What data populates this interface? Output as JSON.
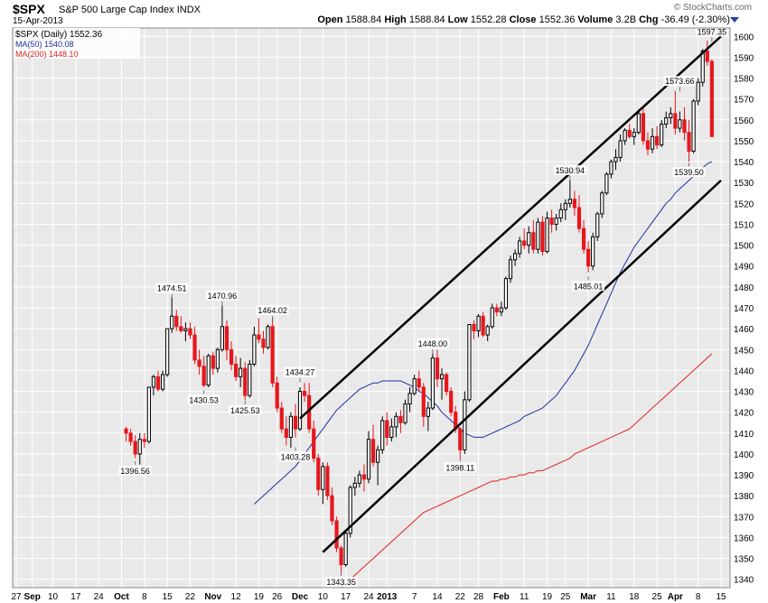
{
  "header": {
    "symbol": "$SPX",
    "name": "S&P 500 Large Cap Index",
    "exchange": "INDX",
    "date": "15-Apr-2013",
    "brand": "© StockCharts.com",
    "ohlc": {
      "open_label": "Open",
      "open": "1588.84",
      "high_label": "High",
      "high": "1588.84",
      "low_label": "Low",
      "low": "1552.28",
      "close_label": "Close",
      "close": "1552.36",
      "volume_label": "Volume",
      "volume": "3.2B",
      "chg_label": "Chg",
      "chg": "-36.49 (-2.30%)"
    }
  },
  "legend": {
    "main": "$SPX (Daily) 1552.36",
    "ma50": "MA(50) 1540.08",
    "ma200": "MA(200) 1448.10"
  },
  "colors": {
    "background": "#e9e9e9",
    "up": "#000000",
    "down": "#e8161c",
    "ma50": "#1f2fa0",
    "ma200": "#e0241e",
    "channel": "#000000",
    "grid": "#ffffff"
  },
  "chart_data": {
    "type": "candlestick",
    "ylim": [
      1336,
      1604
    ],
    "y_ticks": [
      1340,
      1350,
      1360,
      1370,
      1380,
      1390,
      1400,
      1410,
      1420,
      1430,
      1440,
      1450,
      1460,
      1470,
      1480,
      1490,
      1500,
      1510,
      1520,
      1530,
      1540,
      1550,
      1560,
      1570,
      1580,
      1590,
      1600
    ],
    "x_labels": [
      {
        "label": "27",
        "bold": false
      },
      {
        "label": "Sep",
        "bold": true
      },
      {
        "label": "10",
        "bold": false
      },
      {
        "label": "17",
        "bold": false
      },
      {
        "label": "24",
        "bold": false
      },
      {
        "label": "Oct",
        "bold": true
      },
      {
        "label": "8",
        "bold": false
      },
      {
        "label": "15",
        "bold": false
      },
      {
        "label": "22",
        "bold": false
      },
      {
        "label": "Nov",
        "bold": true
      },
      {
        "label": "12",
        "bold": false
      },
      {
        "label": "19",
        "bold": false
      },
      {
        "label": "26",
        "bold": false
      },
      {
        "label": "Dec",
        "bold": true
      },
      {
        "label": "10",
        "bold": false
      },
      {
        "label": "17",
        "bold": false
      },
      {
        "label": "24",
        "bold": false
      },
      {
        "label": "2013",
        "bold": true
      },
      {
        "label": "7",
        "bold": false
      },
      {
        "label": "14",
        "bold": false
      },
      {
        "label": "22",
        "bold": false
      },
      {
        "label": "28",
        "bold": false
      },
      {
        "label": "Feb",
        "bold": true
      },
      {
        "label": "11",
        "bold": false
      },
      {
        "label": "19",
        "bold": false
      },
      {
        "label": "25",
        "bold": false
      },
      {
        "label": "Mar",
        "bold": true
      },
      {
        "label": "11",
        "bold": false
      },
      {
        "label": "18",
        "bold": false
      },
      {
        "label": "25",
        "bold": false
      },
      {
        "label": "Apr",
        "bold": true
      },
      {
        "label": "8",
        "bold": false
      },
      {
        "label": "15",
        "bold": false
      }
    ],
    "x_label_days": [
      0,
      3.5,
      8,
      13,
      18,
      23,
      28,
      33,
      38,
      43,
      48,
      53,
      57,
      62,
      67,
      72,
      77,
      81,
      87,
      92,
      97,
      101,
      106,
      111,
      116,
      120,
      125,
      130,
      135,
      140,
      144,
      149,
      154
    ],
    "ohlc": [
      [
        1412,
        1413,
        1406,
        1410
      ],
      [
        1410,
        1412,
        1404,
        1406
      ],
      [
        1406,
        1409,
        1398,
        1400
      ],
      [
        1400,
        1410,
        1395,
        1407
      ],
      [
        1407,
        1410,
        1403,
        1406
      ],
      [
        1406,
        1432,
        1405,
        1432
      ],
      [
        1432,
        1438,
        1428,
        1437
      ],
      [
        1437,
        1440,
        1430,
        1431
      ],
      [
        1431,
        1440,
        1430,
        1438
      ],
      [
        1438,
        1460,
        1437,
        1460
      ],
      [
        1460,
        1475,
        1458,
        1466
      ],
      [
        1466,
        1469,
        1459,
        1461
      ],
      [
        1461,
        1466,
        1458,
        1459
      ],
      [
        1459,
        1463,
        1454,
        1460
      ],
      [
        1460,
        1463,
        1455,
        1457
      ],
      [
        1457,
        1461,
        1443,
        1445
      ],
      [
        1445,
        1450,
        1438,
        1442
      ],
      [
        1442,
        1447,
        1432,
        1433
      ],
      [
        1433,
        1448,
        1432,
        1447
      ],
      [
        1447,
        1449,
        1438,
        1441
      ],
      [
        1441,
        1451,
        1439,
        1450
      ],
      [
        1450,
        1471,
        1449,
        1461
      ],
      [
        1461,
        1464,
        1445,
        1450
      ],
      [
        1450,
        1454,
        1440,
        1443
      ],
      [
        1443,
        1447,
        1435,
        1437
      ],
      [
        1437,
        1446,
        1432,
        1441
      ],
      [
        1441,
        1444,
        1426,
        1428
      ],
      [
        1428,
        1445,
        1427,
        1443
      ],
      [
        1443,
        1461,
        1442,
        1457
      ],
      [
        1457,
        1465,
        1453,
        1455
      ],
      [
        1455,
        1459,
        1448,
        1451
      ],
      [
        1451,
        1462,
        1450,
        1461
      ],
      [
        1461,
        1465,
        1432,
        1434
      ],
      [
        1434,
        1437,
        1420,
        1422
      ],
      [
        1422,
        1425,
        1410,
        1412
      ],
      [
        1412,
        1418,
        1404,
        1408
      ],
      [
        1408,
        1420,
        1403,
        1418
      ],
      [
        1418,
        1424,
        1408,
        1412
      ],
      [
        1412,
        1432,
        1411,
        1430
      ],
      [
        1430,
        1434,
        1425,
        1428
      ],
      [
        1428,
        1434,
        1410,
        1412
      ],
      [
        1412,
        1416,
        1396,
        1398
      ],
      [
        1398,
        1400,
        1380,
        1383
      ],
      [
        1383,
        1396,
        1376,
        1394
      ],
      [
        1394,
        1396,
        1378,
        1380
      ],
      [
        1380,
        1384,
        1366,
        1368
      ],
      [
        1368,
        1370,
        1353,
        1355
      ],
      [
        1355,
        1356,
        1343,
        1347
      ],
      [
        1347,
        1363,
        1346,
        1362
      ],
      [
        1362,
        1385,
        1360,
        1384
      ],
      [
        1384,
        1389,
        1380,
        1386
      ],
      [
        1386,
        1392,
        1384,
        1390
      ],
      [
        1390,
        1395,
        1382,
        1388
      ],
      [
        1388,
        1411,
        1386,
        1407
      ],
      [
        1407,
        1414,
        1394,
        1396
      ],
      [
        1396,
        1404,
        1385,
        1402
      ],
      [
        1402,
        1418,
        1400,
        1416
      ],
      [
        1416,
        1420,
        1404,
        1408
      ],
      [
        1408,
        1417,
        1406,
        1413
      ],
      [
        1413,
        1420,
        1408,
        1418
      ],
      [
        1418,
        1421,
        1410,
        1415
      ],
      [
        1415,
        1426,
        1414,
        1424
      ],
      [
        1424,
        1432,
        1420,
        1429
      ],
      [
        1429,
        1438,
        1428,
        1436
      ],
      [
        1436,
        1440,
        1430,
        1432
      ],
      [
        1432,
        1434,
        1413,
        1418
      ],
      [
        1418,
        1425,
        1411,
        1422
      ],
      [
        1422,
        1448,
        1421,
        1446
      ],
      [
        1446,
        1450,
        1432,
        1436
      ],
      [
        1436,
        1441,
        1426,
        1438
      ],
      [
        1438,
        1439,
        1428,
        1430
      ],
      [
        1430,
        1432,
        1418,
        1420
      ],
      [
        1420,
        1423,
        1410,
        1412
      ],
      [
        1412,
        1413,
        1398,
        1402
      ],
      [
        1402,
        1430,
        1400,
        1426
      ],
      [
        1426,
        1462,
        1425,
        1462
      ],
      [
        1462,
        1464,
        1455,
        1459
      ],
      [
        1459,
        1467,
        1456,
        1466
      ],
      [
        1466,
        1468,
        1456,
        1457
      ],
      [
        1457,
        1462,
        1454,
        1461
      ],
      [
        1461,
        1472,
        1460,
        1470
      ],
      [
        1470,
        1472,
        1466,
        1468
      ],
      [
        1468,
        1473,
        1466,
        1470
      ],
      [
        1470,
        1485,
        1469,
        1484
      ],
      [
        1484,
        1495,
        1482,
        1493
      ],
      [
        1493,
        1498,
        1490,
        1496
      ],
      [
        1496,
        1504,
        1494,
        1502
      ],
      [
        1502,
        1508,
        1498,
        1500
      ],
      [
        1500,
        1509,
        1496,
        1506
      ],
      [
        1506,
        1512,
        1496,
        1498
      ],
      [
        1498,
        1513,
        1496,
        1511
      ],
      [
        1511,
        1514,
        1495,
        1497
      ],
      [
        1497,
        1516,
        1496,
        1513
      ],
      [
        1513,
        1517,
        1506,
        1510
      ],
      [
        1510,
        1515,
        1507,
        1513
      ],
      [
        1513,
        1520,
        1511,
        1517
      ],
      [
        1517,
        1522,
        1512,
        1520
      ],
      [
        1520,
        1531,
        1518,
        1522
      ],
      [
        1522,
        1526,
        1514,
        1518
      ],
      [
        1518,
        1524,
        1506,
        1508
      ],
      [
        1508,
        1512,
        1496,
        1498
      ],
      [
        1498,
        1502,
        1487,
        1490
      ],
      [
        1490,
        1506,
        1488,
        1504
      ],
      [
        1504,
        1516,
        1502,
        1515
      ],
      [
        1515,
        1526,
        1513,
        1525
      ],
      [
        1525,
        1535,
        1524,
        1534
      ],
      [
        1534,
        1541,
        1532,
        1540
      ],
      [
        1540,
        1546,
        1536,
        1542
      ],
      [
        1542,
        1553,
        1540,
        1550
      ],
      [
        1550,
        1556,
        1548,
        1555
      ],
      [
        1555,
        1558,
        1551,
        1552
      ],
      [
        1552,
        1556,
        1548,
        1554
      ],
      [
        1554,
        1565,
        1553,
        1563
      ],
      [
        1563,
        1566,
        1548,
        1550
      ],
      [
        1550,
        1554,
        1543,
        1546
      ],
      [
        1546,
        1556,
        1544,
        1552
      ],
      [
        1552,
        1557,
        1546,
        1548
      ],
      [
        1548,
        1560,
        1547,
        1558
      ],
      [
        1558,
        1564,
        1556,
        1561
      ],
      [
        1561,
        1566,
        1558,
        1563
      ],
      [
        1563,
        1574,
        1553,
        1556
      ],
      [
        1556,
        1564,
        1554,
        1560
      ],
      [
        1560,
        1566,
        1550,
        1554
      ],
      [
        1554,
        1560,
        1540,
        1545
      ],
      [
        1545,
        1570,
        1544,
        1569
      ],
      [
        1569,
        1580,
        1567,
        1578
      ],
      [
        1578,
        1594,
        1576,
        1593
      ],
      [
        1593,
        1598,
        1586,
        1588
      ],
      [
        1588,
        1589,
        1552,
        1552
      ]
    ],
    "ma50": [
      1376,
      1378,
      1380,
      1382,
      1384,
      1386,
      1388,
      1390,
      1392,
      1394,
      1397,
      1400,
      1403,
      1406,
      1409,
      1412,
      1415,
      1418,
      1421,
      1423,
      1425,
      1427,
      1429,
      1431,
      1432,
      1433,
      1434,
      1434,
      1435,
      1435,
      1435,
      1435,
      1435,
      1434,
      1433,
      1432,
      1430,
      1429,
      1427,
      1425,
      1423,
      1420,
      1418,
      1416,
      1414,
      1412,
      1410,
      1409,
      1408,
      1408,
      1408,
      1409,
      1410,
      1411,
      1412,
      1413,
      1414,
      1415,
      1416,
      1418,
      1419,
      1420,
      1421,
      1422,
      1424,
      1426,
      1428,
      1431,
      1434,
      1437,
      1440,
      1444,
      1448,
      1452,
      1457,
      1462,
      1467,
      1472,
      1477,
      1482,
      1487,
      1491,
      1495,
      1499,
      1502,
      1505,
      1508,
      1511,
      1514,
      1517,
      1520,
      1522,
      1525,
      1527,
      1529,
      1531,
      1533,
      1535,
      1537,
      1539,
      1540
    ],
    "ma200": [
      1336,
      1338,
      1340,
      1342,
      1344,
      1346,
      1348,
      1350,
      1352,
      1354,
      1356,
      1358,
      1360,
      1362,
      1364,
      1366,
      1368,
      1370,
      1372,
      1373,
      1374,
      1375,
      1376,
      1377,
      1378,
      1379,
      1380,
      1381,
      1382,
      1383,
      1384,
      1385,
      1386,
      1387,
      1387,
      1388,
      1388,
      1389,
      1389,
      1390,
      1390,
      1391,
      1391,
      1392,
      1392,
      1393,
      1394,
      1395,
      1396,
      1397,
      1398,
      1400,
      1401,
      1402,
      1403,
      1404,
      1405,
      1406,
      1407,
      1408,
      1409,
      1410,
      1411,
      1412,
      1414,
      1416,
      1418,
      1420,
      1422,
      1424,
      1426,
      1428,
      1430,
      1432,
      1434,
      1436,
      1438,
      1440,
      1442,
      1444,
      1446,
      1448
    ],
    "channel_upper": [
      [
        1417,
        1600
      ]
    ],
    "channel_lower": [
      [
        1353,
        1531
      ]
    ],
    "annotations": [
      {
        "label": "1474.51",
        "day": 10,
        "value": 1474.51,
        "pos": "above"
      },
      {
        "label": "1396.56",
        "day": 2,
        "value": 1396.56,
        "pos": "below"
      },
      {
        "label": "1470.96",
        "day": 21,
        "value": 1470.96,
        "pos": "above"
      },
      {
        "label": "1430.53",
        "day": 17,
        "value": 1430.53,
        "pos": "below"
      },
      {
        "label": "1464.02",
        "day": 32,
        "value": 1464.02,
        "pos": "above"
      },
      {
        "label": "1425.53",
        "day": 26,
        "value": 1425.53,
        "pos": "below"
      },
      {
        "label": "1434.27",
        "day": 38,
        "value": 1434.27,
        "pos": "above"
      },
      {
        "label": "1403.28",
        "day": 37,
        "value": 1403.28,
        "pos": "below"
      },
      {
        "label": "1343.35",
        "day": 47,
        "value": 1343.35,
        "pos": "below"
      },
      {
        "label": "1448.00",
        "day": 67,
        "value": 1448.0,
        "pos": "above"
      },
      {
        "label": "1398.11",
        "day": 73,
        "value": 1398.11,
        "pos": "below"
      },
      {
        "label": "1530.94",
        "day": 97,
        "value": 1530.94,
        "pos": "above"
      },
      {
        "label": "1485.01",
        "day": 101,
        "value": 1485.01,
        "pos": "below"
      },
      {
        "label": "1573.66",
        "day": 121,
        "value": 1573.66,
        "pos": "above"
      },
      {
        "label": "1539.50",
        "day": 123,
        "value": 1539.5,
        "pos": "below"
      },
      {
        "label": "1597.35",
        "day": 128,
        "value": 1597.35,
        "pos": "above"
      }
    ]
  }
}
